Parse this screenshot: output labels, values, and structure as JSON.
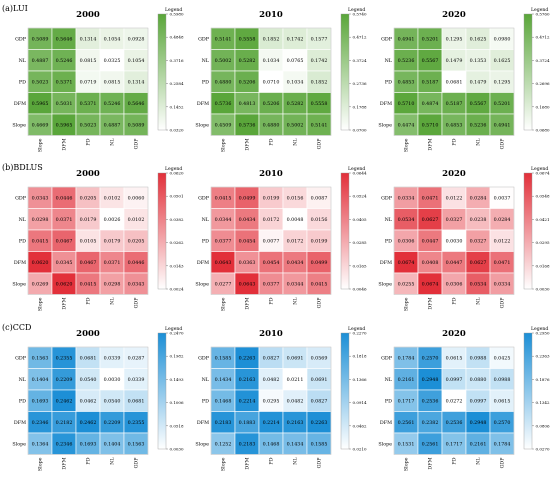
{
  "labels": [
    "GDP",
    "NL",
    "PD",
    "DFM",
    "Slope"
  ],
  "chart_data": [
    {
      "group": "(a)LUI",
      "color_low": "#ffffff",
      "color_high": "#5aa63a",
      "panels": [
        {
          "year": "2000",
          "type": "heatmap",
          "legend_title": "Legend",
          "legend_ticks": [
            "0.5980",
            "0.4848",
            "0.3716",
            "0.2584",
            "0.1452",
            "0.0320"
          ],
          "vmin": 0.032,
          "vmax": 0.598,
          "matrix": [
            [
              0.5089,
              0.5646,
              0.1314,
              0.1054,
              0.0928
            ],
            [
              0.4887,
              0.5246,
              0.0815,
              0.0325,
              0.1054
            ],
            [
              0.5023,
              0.5371,
              0.0719,
              0.0815,
              0.1314
            ],
            [
              0.5965,
              0.5031,
              0.5371,
              0.5246,
              0.5646
            ],
            [
              0.4669,
              0.5965,
              0.5023,
              0.4887,
              0.5089
            ]
          ]
        },
        {
          "year": "2010",
          "type": "heatmap",
          "legend_title": "Legend",
          "legend_ticks": [
            "0.5740",
            "0.4712",
            "0.3724",
            "0.2736",
            "0.1788",
            "0.0700"
          ],
          "vmin": 0.07,
          "vmax": 0.574,
          "matrix": [
            [
              0.5141,
              0.5558,
              0.1852,
              0.1742,
              0.1577
            ],
            [
              0.5002,
              0.5282,
              0.1034,
              0.0765,
              0.1742
            ],
            [
              0.488,
              0.5206,
              0.071,
              0.1034,
              0.1852
            ],
            [
              0.5736,
              0.4813,
              0.5206,
              0.5282,
              0.5558
            ],
            [
              0.4509,
              0.5736,
              0.488,
              0.5002,
              0.5141
            ]
          ]
        },
        {
          "year": "2020",
          "type": "heatmap",
          "legend_title": "Legend",
          "legend_ticks": [
            "0.5760",
            "0.4712",
            "0.3724",
            "0.2696",
            "0.1680",
            "0.0680"
          ],
          "vmin": 0.068,
          "vmax": 0.576,
          "matrix": [
            [
              0.4941,
              0.5201,
              0.1295,
              0.1625,
              0.098
            ],
            [
              0.5236,
              0.5567,
              0.1479,
              0.1353,
              0.1625
            ],
            [
              0.4853,
              0.5187,
              0.0681,
              0.1479,
              0.1295
            ],
            [
              0.571,
              0.4874,
              0.5187,
              0.5567,
              0.5201
            ],
            [
              0.4474,
              0.571,
              0.4853,
              0.5236,
              0.4941
            ]
          ]
        }
      ]
    },
    {
      "group": "(b)BDLUS",
      "color_low": "#ffffff",
      "color_high": "#e2303a",
      "panels": [
        {
          "year": "2000",
          "type": "heatmap",
          "legend_title": "Legend",
          "legend_ticks": [
            "0.0620",
            "0.0501",
            "0.0382",
            "0.0262",
            "0.0143",
            "0.0024"
          ],
          "vmin": 0.0024,
          "vmax": 0.062,
          "matrix": [
            [
              0.0343,
              0.0446,
              0.0205,
              0.0102,
              0.006
            ],
            [
              0.0298,
              0.0371,
              0.0179,
              0.0026,
              0.0102
            ],
            [
              0.0415,
              0.0467,
              0.0105,
              0.0179,
              0.0205
            ],
            [
              0.062,
              0.0345,
              0.0467,
              0.0371,
              0.0446
            ],
            [
              0.0269,
              0.062,
              0.0415,
              0.0298,
              0.0343
            ]
          ]
        },
        {
          "year": "2010",
          "type": "heatmap",
          "legend_title": "Legend",
          "legend_ticks": [
            "0.0644",
            "0.0524",
            "0.0405",
            "0.0285",
            "0.0165",
            "0.0046"
          ],
          "vmin": 0.0046,
          "vmax": 0.0644,
          "matrix": [
            [
              0.0415,
              0.0499,
              0.0199,
              0.0156,
              0.0087
            ],
            [
              0.0344,
              0.0434,
              0.0172,
              0.0048,
              0.0156
            ],
            [
              0.0377,
              0.0454,
              0.0077,
              0.0172,
              0.0199
            ],
            [
              0.0643,
              0.0363,
              0.0454,
              0.0434,
              0.0499
            ],
            [
              0.0277,
              0.0643,
              0.0377,
              0.0344,
              0.0415
            ]
          ]
        },
        {
          "year": "2020",
          "type": "heatmap",
          "legend_title": "Legend",
          "legend_ticks": [
            "0.0674",
            "0.0548",
            "0.0421",
            "0.0295",
            "0.0168",
            "0.0030"
          ],
          "vmin": 0.003,
          "vmax": 0.0674,
          "matrix": [
            [
              0.0334,
              0.0471,
              0.0122,
              0.0284,
              0.0037
            ],
            [
              0.0534,
              0.0627,
              0.0327,
              0.0238,
              0.0284
            ],
            [
              0.0306,
              0.0447,
              0.003,
              0.0327,
              0.0122
            ],
            [
              0.0674,
              0.0408,
              0.0447,
              0.0627,
              0.0471
            ],
            [
              0.0255,
              0.0674,
              0.0306,
              0.0534,
              0.0334
            ]
          ]
        }
      ]
    },
    {
      "group": "(c)CCD",
      "color_low": "#ffffff",
      "color_high": "#1c8fd6",
      "panels": [
        {
          "year": "2000",
          "type": "heatmap",
          "legend_title": "Legend",
          "legend_ticks": [
            "0.2470",
            "0.1982",
            "0.1493",
            "0.1006",
            "0.0518",
            "0.0030"
          ],
          "vmin": 0.003,
          "vmax": 0.247,
          "matrix": [
            [
              0.1563,
              0.2355,
              0.0681,
              0.0339,
              0.0287
            ],
            [
              0.1404,
              0.2209,
              0.054,
              0.003,
              0.0339
            ],
            [
              0.1693,
              0.2462,
              0.0462,
              0.054,
              0.0681
            ],
            [
              0.2346,
              0.2182,
              0.2462,
              0.2209,
              0.2355
            ],
            [
              0.1364,
              0.2346,
              0.1693,
              0.1404,
              0.1563
            ]
          ]
        },
        {
          "year": "2010",
          "type": "heatmap",
          "legend_title": "Legend",
          "legend_ticks": [
            "0.2270",
            "0.1818",
            "0.1366",
            "0.0914",
            "0.0462",
            "0.0210"
          ],
          "vmin": 0.021,
          "vmax": 0.227,
          "matrix": [
            [
              0.1585,
              0.2263,
              0.0827,
              0.0691,
              0.0569
            ],
            [
              0.1434,
              0.2163,
              0.0482,
              0.0211,
              0.0691
            ],
            [
              0.1468,
              0.2214,
              0.0295,
              0.0482,
              0.0827
            ],
            [
              0.2183,
              0.1883,
              0.2214,
              0.2163,
              0.2263
            ],
            [
              0.1252,
              0.2183,
              0.1468,
              0.1434,
              0.1585
            ]
          ]
        },
        {
          "year": "2020",
          "type": "heatmap",
          "legend_title": "Legend",
          "legend_ticks": [
            "0.2950",
            "0.2363",
            "0.1876",
            "0.1342",
            "0.0806",
            "0.0270"
          ],
          "vmin": 0.027,
          "vmax": 0.295,
          "matrix": [
            [
              0.1784,
              0.257,
              0.0615,
              0.0988,
              0.0425
            ],
            [
              0.2161,
              0.2948,
              0.0997,
              0.088,
              0.0988
            ],
            [
              0.1717,
              0.2536,
              0.0272,
              0.0997,
              0.0615
            ],
            [
              0.2561,
              0.2382,
              0.2536,
              0.2948,
              0.257
            ],
            [
              0.1531,
              0.2561,
              0.1717,
              0.2161,
              0.1784
            ]
          ]
        }
      ]
    }
  ]
}
